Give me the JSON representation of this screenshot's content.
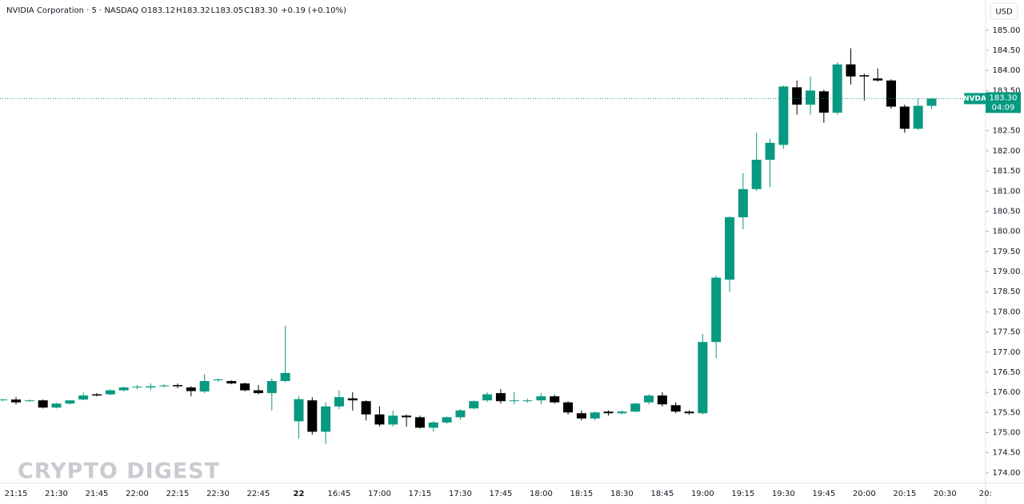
{
  "chart_data": {
    "type": "candlestick",
    "symbol_info": "NVIDIA Corporation · 5 · NASDAQ",
    "ohlc_legend": [
      {
        "label": "O",
        "value": "183.12"
      },
      {
        "label": "H",
        "value": "183.32"
      },
      {
        "label": "L",
        "value": "183.05"
      },
      {
        "label": "C",
        "value": "183.30"
      }
    ],
    "change": "+0.19 (+0.10%)",
    "currency": "USD",
    "watermark": "CRYPTO DIGEST",
    "last_price": {
      "symbol": "NVDA",
      "value": 183.3,
      "label": "183.30",
      "countdown": "04:09"
    },
    "up_color": "#089981",
    "down_color": "#000000",
    "categories": [
      null,
      "21:15",
      null,
      null,
      "21:30",
      null,
      null,
      "21:45",
      null,
      null,
      "22:00",
      null,
      null,
      "22:15",
      null,
      null,
      "22:30",
      null,
      null,
      "22:45",
      null,
      null,
      "22",
      null,
      null,
      "16:45",
      null,
      null,
      "17:00",
      null,
      null,
      "17:15",
      null,
      null,
      "17:30",
      null,
      null,
      "17:45",
      null,
      null,
      "18:00",
      null,
      null,
      "18:15",
      null,
      null,
      "18:30",
      null,
      null,
      "18:45",
      null,
      null,
      "19:00",
      null,
      null,
      "19:15",
      null,
      null,
      "19:30",
      null,
      null,
      "19:45",
      null,
      null,
      "20:00",
      null,
      null,
      "20:15",
      null,
      null,
      "20:30",
      null,
      null,
      "20:"
    ],
    "open": [
      175.8,
      175.82,
      175.78,
      175.8,
      175.62,
      175.72,
      175.82,
      175.95,
      175.95,
      176.05,
      176.12,
      176.12,
      176.15,
      176.18,
      176.12,
      176.02,
      176.3,
      176.28,
      176.22,
      176.05,
      175.98,
      176.28,
      175.28,
      175.8,
      175.02,
      175.65,
      175.85,
      175.78,
      175.45,
      175.2,
      175.42,
      175.38,
      175.12,
      175.25,
      175.38,
      175.6,
      175.8,
      175.98,
      175.78,
      175.78,
      175.8,
      175.9,
      175.75,
      175.48,
      175.35,
      175.52,
      175.48,
      175.52,
      175.75,
      175.92,
      175.68,
      175.52,
      175.48,
      177.25,
      178.8,
      180.35,
      181.05,
      181.78,
      182.15,
      183.58,
      183.15,
      183.48,
      182.95,
      184.15,
      183.88,
      183.8,
      183.75,
      183.1,
      182.55,
      183.12,
      null,
      null,
      null,
      null
    ],
    "high": [
      175.84,
      175.88,
      175.82,
      175.82,
      175.74,
      175.8,
      176.0,
      175.98,
      176.08,
      176.14,
      176.18,
      176.22,
      176.2,
      176.22,
      176.15,
      176.45,
      176.34,
      176.3,
      176.24,
      176.18,
      176.35,
      177.65,
      175.9,
      175.88,
      175.75,
      176.05,
      176.0,
      175.8,
      175.65,
      175.55,
      175.45,
      175.42,
      175.28,
      175.4,
      175.58,
      175.8,
      176.0,
      176.08,
      176.0,
      175.84,
      175.98,
      175.94,
      175.78,
      175.55,
      175.52,
      175.55,
      175.55,
      175.74,
      175.95,
      176.0,
      175.75,
      175.55,
      177.45,
      178.9,
      180.38,
      181.45,
      182.45,
      182.3,
      183.62,
      183.75,
      183.85,
      183.52,
      184.2,
      184.55,
      183.92,
      184.05,
      183.78,
      183.15,
      183.3,
      183.32,
      null,
      null,
      null,
      null
    ],
    "low": [
      175.78,
      175.7,
      175.76,
      175.6,
      175.6,
      175.7,
      175.8,
      175.9,
      175.92,
      176.02,
      176.08,
      176.05,
      176.12,
      176.1,
      175.9,
      175.98,
      176.26,
      176.2,
      176.02,
      175.95,
      175.55,
      176.25,
      174.85,
      174.95,
      174.72,
      175.58,
      175.55,
      175.3,
      175.15,
      175.15,
      175.15,
      175.1,
      175.02,
      175.22,
      175.32,
      175.58,
      175.76,
      175.72,
      175.7,
      175.74,
      175.7,
      175.72,
      175.45,
      175.3,
      175.3,
      175.42,
      175.45,
      175.5,
      175.7,
      175.65,
      175.48,
      175.44,
      175.45,
      176.85,
      178.5,
      180.05,
      181.0,
      181.1,
      182.05,
      182.9,
      182.9,
      182.7,
      182.9,
      183.65,
      183.25,
      183.72,
      183.05,
      182.45,
      182.52,
      183.05,
      null,
      null,
      null,
      null
    ],
    "close": [
      175.82,
      175.75,
      175.8,
      175.62,
      175.72,
      175.8,
      175.92,
      175.92,
      176.05,
      176.12,
      176.14,
      176.15,
      176.17,
      176.15,
      176.03,
      176.28,
      176.32,
      176.22,
      176.05,
      175.98,
      176.28,
      176.48,
      175.83,
      175.02,
      175.65,
      175.88,
      175.8,
      175.45,
      175.2,
      175.42,
      175.38,
      175.12,
      175.25,
      175.38,
      175.55,
      175.78,
      175.95,
      175.78,
      175.8,
      175.8,
      175.9,
      175.75,
      175.5,
      175.35,
      175.5,
      175.48,
      175.52,
      175.72,
      175.92,
      175.7,
      175.52,
      175.48,
      177.25,
      178.85,
      180.35,
      181.05,
      181.78,
      182.2,
      183.6,
      183.15,
      183.5,
      182.95,
      184.15,
      183.85,
      183.85,
      183.75,
      183.1,
      182.55,
      183.12,
      183.3,
      null,
      null,
      null,
      null
    ],
    "ylim": [
      173.74,
      185.75
    ],
    "yticks": [
      {
        "value": 174,
        "label": "174.00"
      },
      {
        "value": 174.5,
        "label": "174.50"
      },
      {
        "value": 175,
        "label": "175.00"
      },
      {
        "value": 175.5,
        "label": "175.50"
      },
      {
        "value": 176,
        "label": "176.00"
      },
      {
        "value": 176.5,
        "label": "176.50"
      },
      {
        "value": 177,
        "label": "177.00"
      },
      {
        "value": 177.5,
        "label": "177.50"
      },
      {
        "value": 178,
        "label": "178.00"
      },
      {
        "value": 178.5,
        "label": "178.50"
      },
      {
        "value": 179,
        "label": "179.00"
      },
      {
        "value": 179.5,
        "label": "179.50"
      },
      {
        "value": 180,
        "label": "180.00"
      },
      {
        "value": 180.5,
        "label": "180.50"
      },
      {
        "value": 181,
        "label": "181.00"
      },
      {
        "value": 181.5,
        "label": "181.50"
      },
      {
        "value": 182,
        "label": "182.00"
      },
      {
        "value": 182.5,
        "label": "182.50"
      },
      {
        "value": 183,
        "label": "183.00"
      },
      {
        "value": 183.5,
        "label": "183.50"
      },
      {
        "value": 184,
        "label": "184.00"
      },
      {
        "value": 184.5,
        "label": "184.50"
      },
      {
        "value": 185,
        "label": "185.00"
      }
    ],
    "grid": false
  }
}
